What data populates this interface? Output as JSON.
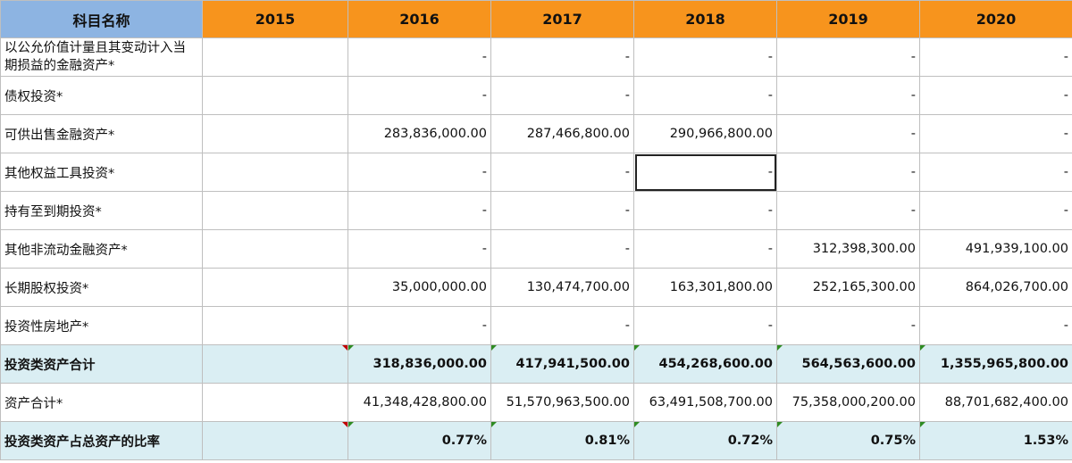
{
  "header": {
    "label": "科目名称",
    "years": [
      "2015",
      "2016",
      "2017",
      "2018",
      "2019",
      "2020"
    ]
  },
  "rows": [
    {
      "label": "以公允价值计量且其变动计入当期损益的金融资产*",
      "values": [
        "",
        "-",
        "-",
        "-",
        "-",
        "-"
      ]
    },
    {
      "label": "债权投资*",
      "values": [
        "",
        "-",
        "-",
        "-",
        "-",
        "-"
      ]
    },
    {
      "label": "可供出售金融资产*",
      "values": [
        "",
        "283,836,000.00",
        "287,466,800.00",
        "290,966,800.00",
        "-",
        "-"
      ]
    },
    {
      "label": "其他权益工具投资*",
      "values": [
        "",
        "-",
        "-",
        "-",
        "-",
        "-"
      ]
    },
    {
      "label": "持有至到期投资*",
      "values": [
        "",
        "-",
        "-",
        "-",
        "-",
        "-"
      ]
    },
    {
      "label": "其他非流动金融资产*",
      "values": [
        "",
        "-",
        "-",
        "-",
        "312,398,300.00",
        "491,939,100.00"
      ]
    },
    {
      "label": "长期股权投资*",
      "values": [
        "",
        "35,000,000.00",
        "130,474,700.00",
        "163,301,800.00",
        "252,165,300.00",
        "864,026,700.00"
      ]
    },
    {
      "label": "投资性房地产*",
      "values": [
        "",
        "-",
        "-",
        "-",
        "-",
        "-"
      ]
    },
    {
      "label": "投资类资产合计",
      "values": [
        "",
        "318,836,000.00",
        "417,941,500.00",
        "454,268,600.00",
        "564,563,600.00",
        "1,355,965,800.00"
      ]
    },
    {
      "label": "资产合计*",
      "values": [
        "",
        "41,348,428,800.00",
        "51,570,963,500.00",
        "63,491,508,700.00",
        "75,358,000,200.00",
        "88,701,682,400.00"
      ]
    },
    {
      "label": "投资类资产占总资产的比率",
      "values": [
        "",
        "0.77%",
        "0.81%",
        "0.72%",
        "0.75%",
        "1.53%"
      ]
    }
  ]
}
